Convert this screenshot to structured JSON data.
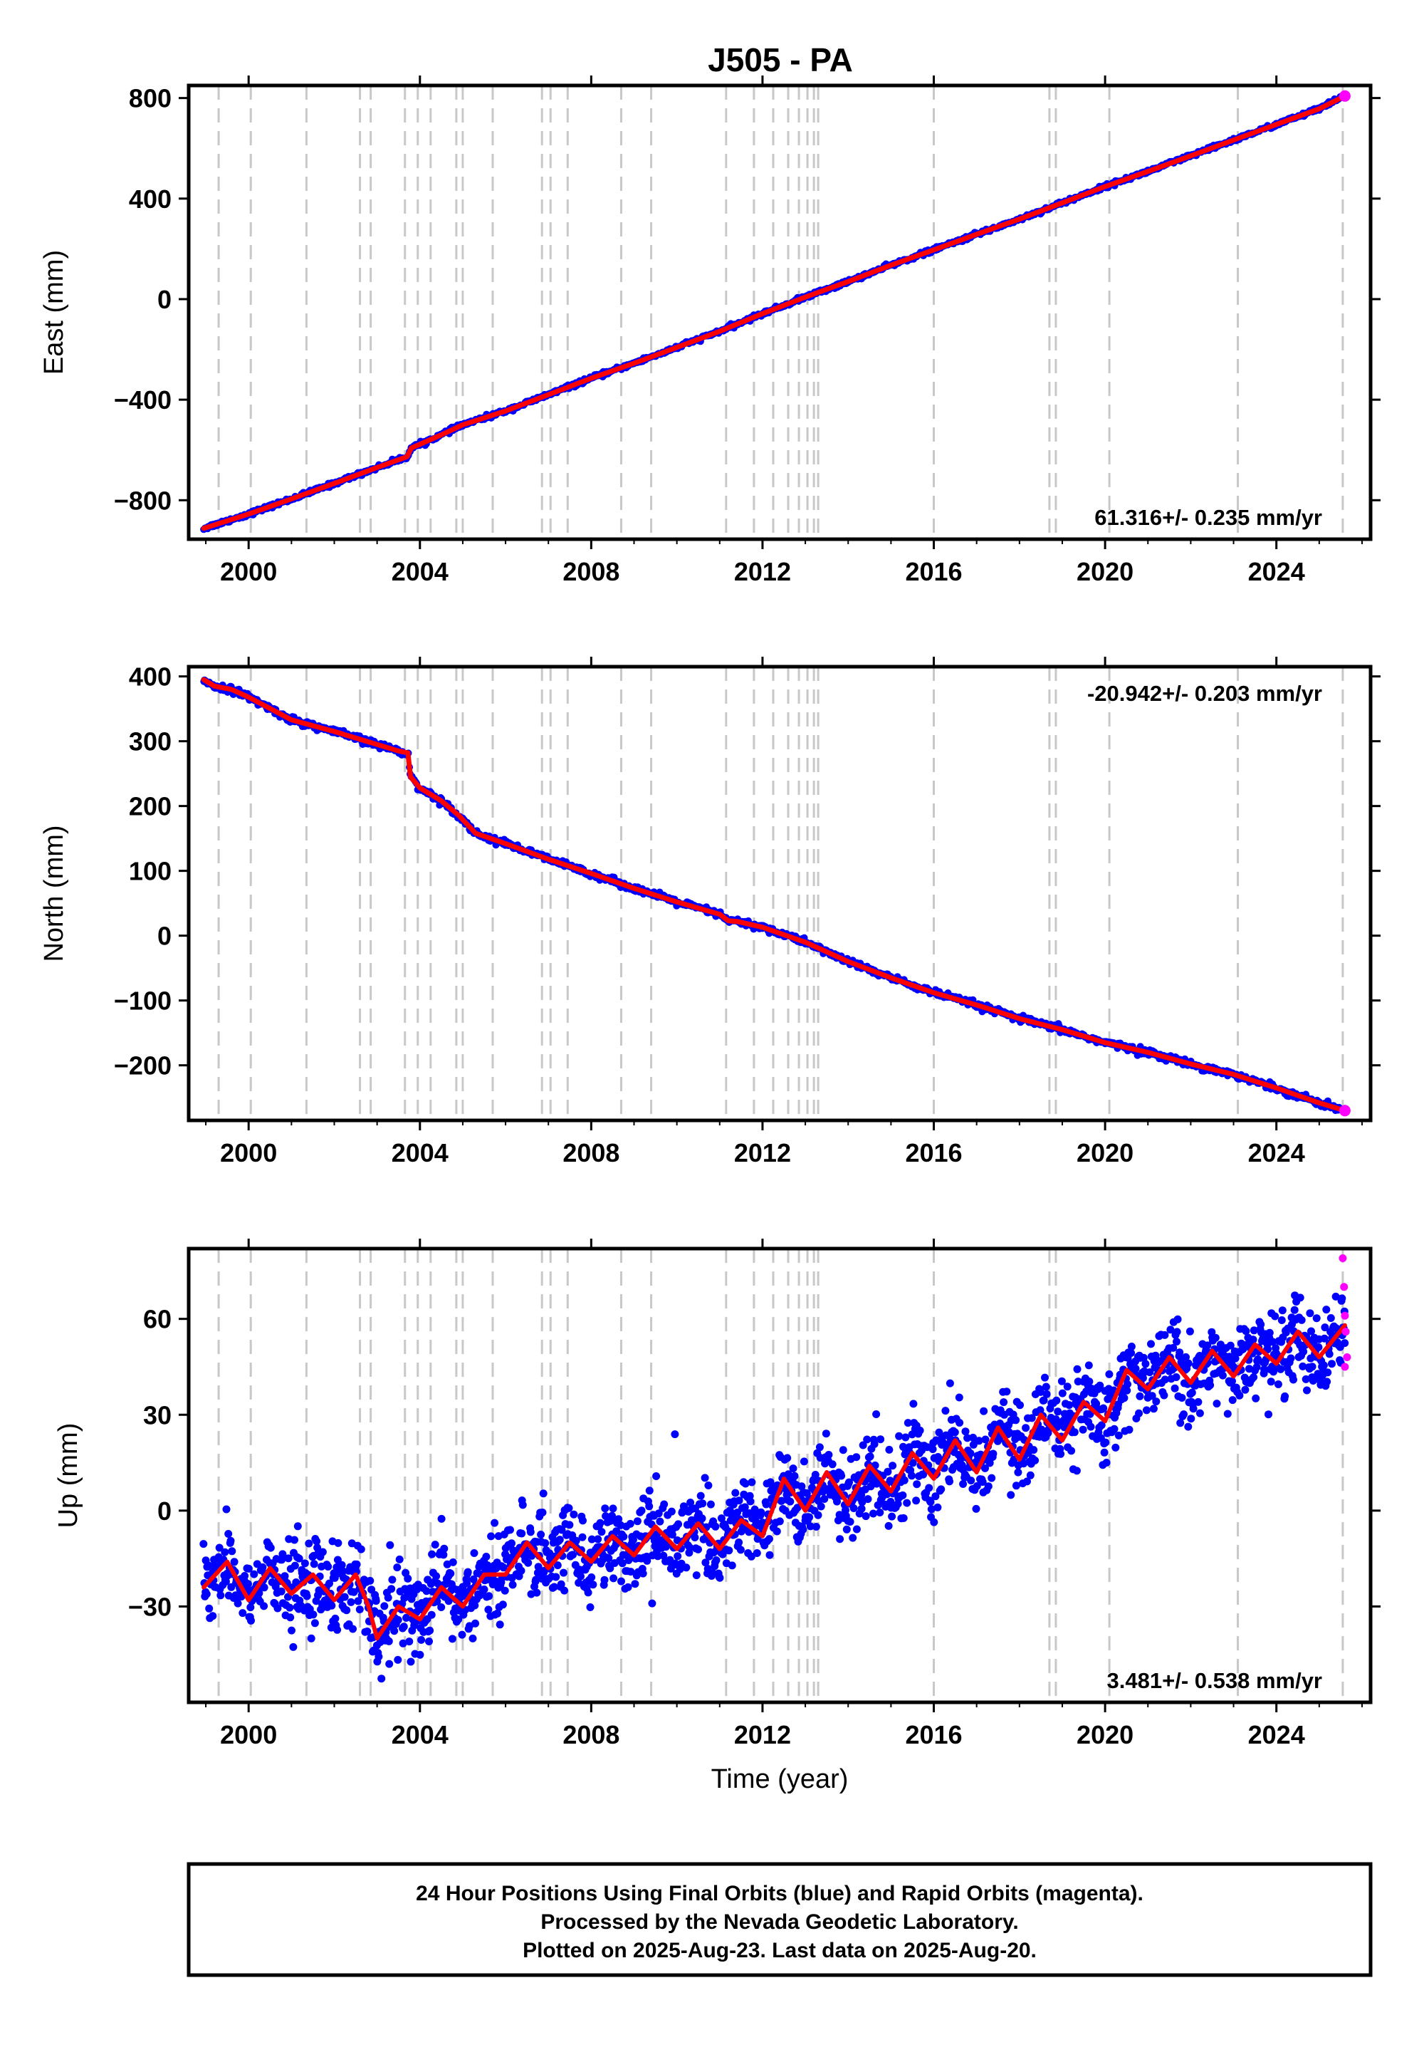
{
  "figure": {
    "title": "J505 - PA",
    "footer": [
      "24 Hour Positions Using Final Orbits (blue) and Rapid Orbits (magenta).",
      "Processed by the Nevada Geodetic Laboratory.",
      "Plotted on 2025-Aug-23. Last data on 2025-Aug-20."
    ],
    "colors": {
      "final_orbits": "#0000ff",
      "rapid_orbits": "#ff00ff",
      "trend_line": "#ff0000",
      "event_lines": "#c8c8c8",
      "frame": "#000000"
    }
  },
  "chart_data": [
    {
      "type": "scatter",
      "component": "east",
      "ylabel": "East (mm)",
      "xlabel": "",
      "xlim": [
        1998.6,
        2026.2
      ],
      "ylim": [
        -955,
        850
      ],
      "xticks": [
        2000,
        2004,
        2008,
        2012,
        2016,
        2020,
        2024
      ],
      "yticks": [
        -800,
        -400,
        0,
        400,
        800
      ],
      "annotation": "61.316+/- 0.235 mm/yr",
      "annotation_position": "bottom-right",
      "grid": false,
      "event_lines": [
        1999.3,
        2000.05,
        2001.35,
        2002.6,
        2002.85,
        2003.65,
        2003.95,
        2004.25,
        2004.85,
        2005.0,
        2005.7,
        2006.85,
        2007.05,
        2007.45,
        2008.7,
        2009.4,
        2011.15,
        2011.8,
        2012.25,
        2012.6,
        2012.85,
        2013.05,
        2013.2,
        2013.3,
        2016.0,
        2018.7,
        2018.85,
        2020.1,
        2023.1,
        2025.55
      ],
      "series": [
        {
          "x": [
            1998.95,
            2000.0,
            2001.0,
            2002.0,
            2003.0,
            2003.7,
            2003.8,
            2004.5,
            2005.0,
            2006.0,
            2007.0,
            2008.0,
            2009.0,
            2010.0,
            2011.0,
            2012.0,
            2013.0,
            2014.0,
            2015.0,
            2016.0,
            2017.0,
            2018.0,
            2019.0,
            2020.0,
            2021.0,
            2022.0,
            2023.0,
            2024.0,
            2025.0,
            2025.6
          ],
          "y": [
            -912,
            -855,
            -795,
            -733,
            -670,
            -627,
            -592,
            -540,
            -500,
            -445,
            -380,
            -315,
            -255,
            -192,
            -128,
            -58,
            8,
            70,
            135,
            196,
            258,
            318,
            383,
            448,
            508,
            570,
            633,
            695,
            757,
            808
          ]
        }
      ]
    },
    {
      "type": "scatter",
      "component": "north",
      "ylabel": "North (mm)",
      "xlabel": "",
      "xlim": [
        1998.6,
        2026.2
      ],
      "ylim": [
        -285,
        415
      ],
      "xticks": [
        2000,
        2004,
        2008,
        2012,
        2016,
        2020,
        2024
      ],
      "yticks": [
        -200,
        -100,
        0,
        100,
        200,
        300,
        400
      ],
      "annotation": "-20.942+/- 0.203 mm/yr",
      "annotation_position": "top-right",
      "grid": false,
      "event_lines": [
        1999.3,
        2000.05,
        2001.35,
        2002.6,
        2002.85,
        2003.65,
        2003.95,
        2004.25,
        2004.85,
        2005.0,
        2005.7,
        2006.85,
        2007.05,
        2007.45,
        2008.7,
        2009.4,
        2011.15,
        2011.8,
        2012.25,
        2012.6,
        2012.85,
        2013.05,
        2013.2,
        2013.3,
        2016.0,
        2018.7,
        2018.85,
        2020.1,
        2023.1,
        2025.55
      ],
      "series": [
        {
          "x": [
            1998.95,
            1999.2,
            1999.6,
            2000.0,
            2001.0,
            2002.0,
            2003.0,
            2003.5,
            2003.72,
            2003.78,
            2004.0,
            2004.5,
            2004.9,
            2005.3,
            2006.0,
            2007.0,
            2008.0,
            2009.0,
            2010.0,
            2011.0,
            2011.2,
            2011.4,
            2012.0,
            2013.0,
            2014.0,
            2015.0,
            2016.0,
            2017.0,
            2018.0,
            2019.0,
            2020.0,
            2021.0,
            2022.0,
            2023.0,
            2024.0,
            2025.0,
            2025.6
          ],
          "y": [
            395,
            385,
            380,
            368,
            333,
            315,
            295,
            285,
            282,
            245,
            228,
            208,
            186,
            158,
            142,
            118,
            96,
            73,
            52,
            33,
            23,
            22,
            13,
            -10,
            -40,
            -65,
            -88,
            -107,
            -128,
            -145,
            -165,
            -180,
            -198,
            -214,
            -235,
            -258,
            -270
          ]
        }
      ]
    },
    {
      "type": "scatter",
      "component": "up",
      "ylabel": "Up (mm)",
      "xlabel": "Time (year)",
      "xlim": [
        1998.6,
        2026.2
      ],
      "ylim": [
        -60,
        82
      ],
      "xticks": [
        2000,
        2004,
        2008,
        2012,
        2016,
        2020,
        2024
      ],
      "yticks": [
        -30,
        0,
        30,
        60
      ],
      "annotation": "3.481+/- 0.538 mm/yr",
      "annotation_position": "bottom-right",
      "grid": false,
      "event_lines": [
        1999.3,
        2000.05,
        2001.35,
        2002.6,
        2002.85,
        2003.65,
        2003.95,
        2004.25,
        2004.85,
        2005.0,
        2005.7,
        2006.85,
        2007.05,
        2007.45,
        2008.7,
        2009.4,
        2011.15,
        2011.8,
        2012.25,
        2012.6,
        2012.85,
        2013.05,
        2013.2,
        2013.3,
        2016.0,
        2018.7,
        2018.85,
        2020.1,
        2023.1,
        2025.55
      ],
      "series": [
        {
          "x": [
            1998.95,
            1999.5,
            2000.0,
            2000.5,
            2001.0,
            2001.5,
            2002.0,
            2002.5,
            2002.8,
            2003.0,
            2003.5,
            2004.0,
            2004.5,
            2005.0,
            2005.5,
            2006.0,
            2006.5,
            2007.0,
            2007.5,
            2008.0,
            2008.5,
            2009.0,
            2009.5,
            2010.0,
            2010.5,
            2011.0,
            2011.5,
            2012.0,
            2012.5,
            2013.0,
            2013.5,
            2014.0,
            2014.5,
            2015.0,
            2015.5,
            2016.0,
            2016.5,
            2017.0,
            2017.5,
            2018.0,
            2018.5,
            2019.0,
            2019.5,
            2020.0,
            2020.5,
            2021.0,
            2021.5,
            2022.0,
            2022.5,
            2023.0,
            2023.5,
            2024.0,
            2024.5,
            2025.0,
            2025.6
          ],
          "y": [
            -24,
            -16,
            -28,
            -18,
            -26,
            -20,
            -28,
            -20,
            -30,
            -40,
            -30,
            -34,
            -24,
            -30,
            -20,
            -20,
            -10,
            -18,
            -10,
            -16,
            -8,
            -14,
            -5,
            -12,
            -4,
            -12,
            -3,
            -8,
            10,
            0,
            12,
            2,
            14,
            6,
            18,
            10,
            22,
            12,
            26,
            16,
            30,
            22,
            34,
            28,
            44,
            38,
            48,
            40,
            50,
            42,
            52,
            46,
            56,
            48,
            58
          ]
        },
        {
          "name": "",
          "x": [
            2025.55,
            2025.58,
            2025.6,
            2025.62,
            2025.65,
            2025.6
          ],
          "y": [
            79,
            70,
            61,
            56,
            48,
            45
          ]
        }
      ]
    }
  ]
}
